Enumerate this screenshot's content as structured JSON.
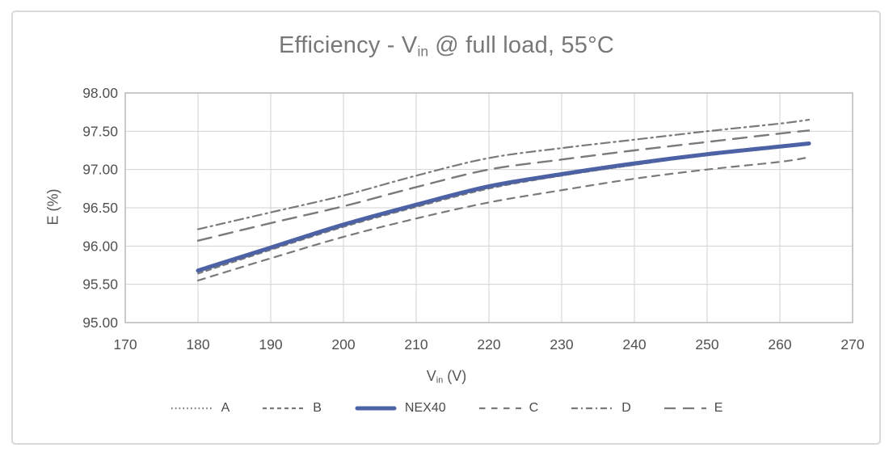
{
  "figure": {
    "title": {
      "prefix": "Efficiency - V",
      "sub": "in",
      "suffix": " @ full load, 55°C"
    },
    "background": "#ffffff",
    "card_border_color": "#d9d9d9"
  },
  "chart_data": {
    "type": "line",
    "title": "Efficiency - V_in @ full load, 55°C",
    "xlabel": {
      "prefix": "V",
      "sub": "in",
      "suffix": " (V)"
    },
    "ylabel": "E (%)",
    "x_range": [
      170,
      270
    ],
    "y_range": [
      95.0,
      98.0
    ],
    "grid": true,
    "legend_position": "bottom",
    "grid_color": "#d2d2d2",
    "axis_color": "#b3b3b3",
    "tick_color": "#515151",
    "x_ticks": [
      {
        "value": 170,
        "label": "170"
      },
      {
        "value": 180,
        "label": "180"
      },
      {
        "value": 190,
        "label": "190"
      },
      {
        "value": 200,
        "label": "200"
      },
      {
        "value": 210,
        "label": "210"
      },
      {
        "value": 220,
        "label": "220"
      },
      {
        "value": 230,
        "label": "230"
      },
      {
        "value": 240,
        "label": "240"
      },
      {
        "value": 250,
        "label": "250"
      },
      {
        "value": 260,
        "label": "260"
      },
      {
        "value": 270,
        "label": "270"
      }
    ],
    "y_ticks": [
      {
        "value": 98.0,
        "label": "98.00"
      },
      {
        "value": 97.5,
        "label": "97.50"
      },
      {
        "value": 97.0,
        "label": "97.00"
      },
      {
        "value": 96.5,
        "label": "96.50"
      },
      {
        "value": 96.0,
        "label": "96.00"
      },
      {
        "value": 95.5,
        "label": "95.50"
      },
      {
        "value": 95.0,
        "label": "95.00"
      }
    ],
    "x": [
      180,
      190,
      200,
      210,
      220,
      230,
      240,
      250,
      260,
      264
    ],
    "series": [
      {
        "name": "A",
        "color": "#7a7a7a",
        "width": 2,
        "dash": "1.6 3.2",
        "legend_dash": "1.6 3.2",
        "values": [
          95.66,
          95.96,
          96.26,
          96.52,
          96.76,
          96.92,
          97.06,
          97.19,
          97.29,
          97.33
        ]
      },
      {
        "name": "B",
        "color": "#7a7a7a",
        "width": 2,
        "dash": "6 5",
        "legend_dash": "5 4",
        "values": [
          95.64,
          95.95,
          96.25,
          96.51,
          96.75,
          96.92,
          97.06,
          97.19,
          97.29,
          97.33
        ]
      },
      {
        "name": "NEX40",
        "color": "#4d62a5",
        "width": 5,
        "dash": "solid",
        "legend_dash": "solid",
        "values": [
          95.68,
          95.98,
          96.28,
          96.54,
          96.78,
          96.94,
          97.08,
          97.2,
          97.3,
          97.34
        ]
      },
      {
        "name": "C",
        "color": "#7a7a7a",
        "width": 2.2,
        "dash": "9 7.5",
        "legend_dash": "7.5 7.5",
        "values": [
          95.55,
          95.84,
          96.12,
          96.36,
          96.57,
          96.73,
          96.88,
          97.0,
          97.1,
          97.16
        ]
      },
      {
        "name": "D",
        "color": "#7a7a7a",
        "width": 2.2,
        "dash": "11 5 2.2 5",
        "legend_dash": "8 4 2 4",
        "values": [
          96.22,
          96.44,
          96.66,
          96.92,
          97.15,
          97.28,
          97.39,
          97.5,
          97.6,
          97.65
        ]
      },
      {
        "name": "E",
        "color": "#7a7a7a",
        "width": 2.4,
        "dash": "17 10",
        "legend_dash": "14 9",
        "values": [
          96.07,
          96.3,
          96.52,
          96.77,
          97.0,
          97.13,
          97.25,
          97.36,
          97.47,
          97.51
        ]
      }
    ],
    "draw_order": [
      "A",
      "B",
      "C",
      "D",
      "E",
      "NEX40"
    ]
  }
}
